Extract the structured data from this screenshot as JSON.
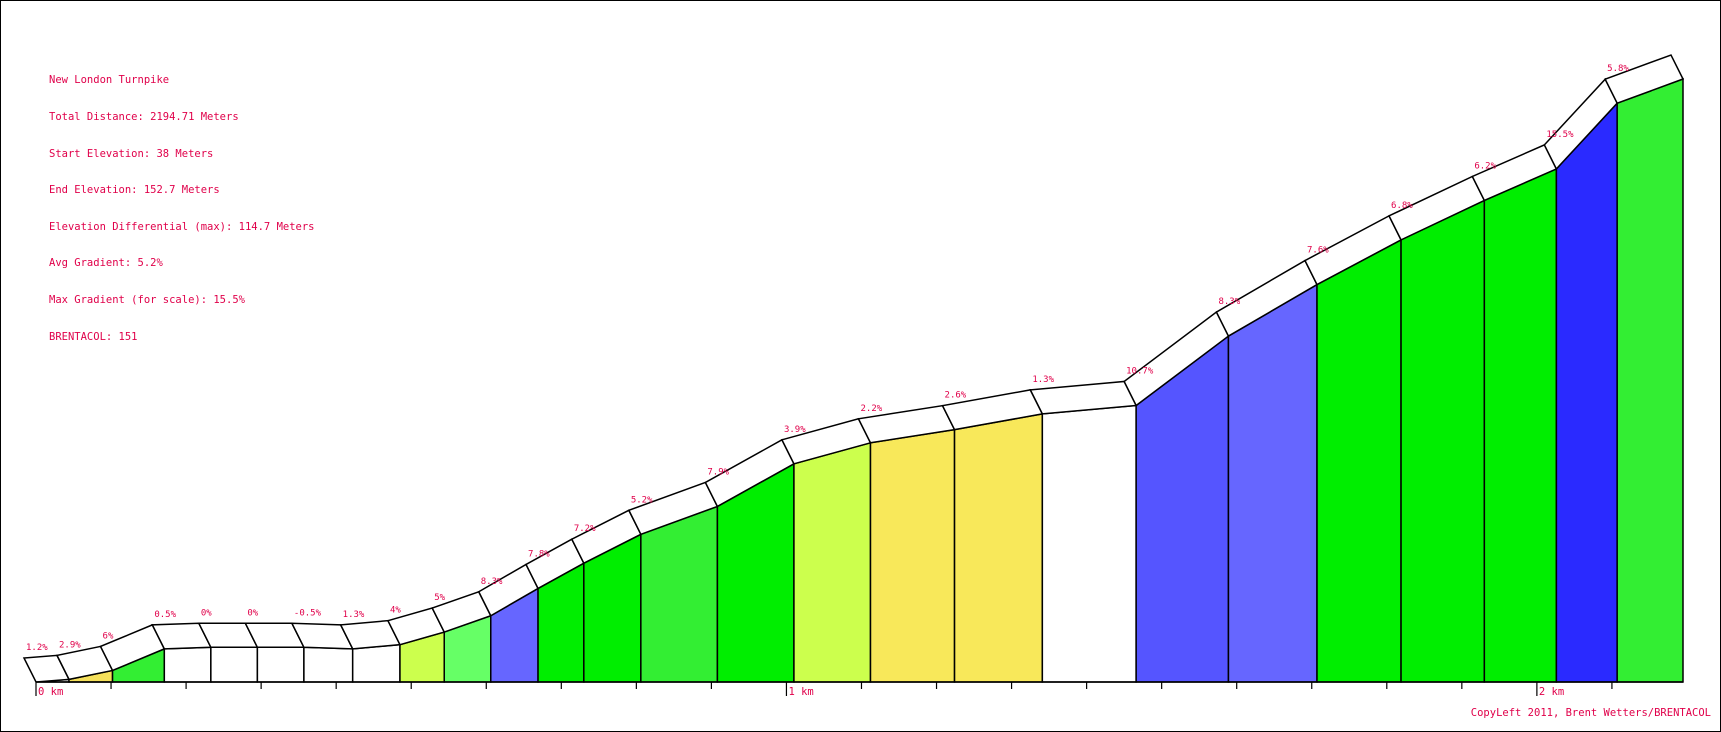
{
  "info": {
    "name": "New London Turnpike",
    "total_distance": "Total Distance: 2194.71 Meters",
    "start_elevation": "Start Elevation: 38 Meters",
    "end_elevation": "End Elevation: 152.7 Meters",
    "elevation_differential": "Elevation Differential (max): 114.7 Meters",
    "avg_gradient": "Avg Gradient: 5.2%",
    "max_gradient": "Max Gradient (for scale): 15.5%",
    "brentacol": "BRENTACOL: 151"
  },
  "copyright": "CopyLeft 2011, Brent Wetters/BRENTACOL",
  "colors": {
    "text": "#e0004a",
    "outline": "#000000"
  },
  "chart_data": {
    "type": "area",
    "xlabel": "",
    "ylabel": "",
    "x_tick_labels": [
      "0 km",
      "1 km",
      "2 km"
    ],
    "x_tick_km": [
      0,
      1,
      2
    ],
    "xlim_m": [
      0,
      2194.71
    ],
    "ylim_m": [
      38,
      152.7
    ],
    "segments": [
      {
        "end_m": 44,
        "end_elev": 38.5,
        "grade_label": "1.2%",
        "color": "#ffffff"
      },
      {
        "end_m": 102,
        "end_elev": 40.2,
        "grade_label": "2.9%",
        "color": "#f5e05a"
      },
      {
        "end_m": 171,
        "end_elev": 44.3,
        "grade_label": "6%",
        "color": "#33ee33"
      },
      {
        "end_m": 233,
        "end_elev": 44.6,
        "grade_label": "0.5%",
        "color": "#ffffff"
      },
      {
        "end_m": 295,
        "end_elev": 44.6,
        "grade_label": "0%",
        "color": "#ffffff"
      },
      {
        "end_m": 357,
        "end_elev": 44.6,
        "grade_label": "0%",
        "color": "#ffffff"
      },
      {
        "end_m": 422,
        "end_elev": 44.3,
        "grade_label": "-0.5%",
        "color": "#ffffff"
      },
      {
        "end_m": 485,
        "end_elev": 45.1,
        "grade_label": "1.3%",
        "color": "#ffffff"
      },
      {
        "end_m": 544,
        "end_elev": 47.5,
        "grade_label": "4%",
        "color": "#ccff4d"
      },
      {
        "end_m": 606,
        "end_elev": 50.6,
        "grade_label": "5%",
        "color": "#66ff66"
      },
      {
        "end_m": 669,
        "end_elev": 55.8,
        "grade_label": "8.3%",
        "color": "#6666ff"
      },
      {
        "end_m": 730,
        "end_elev": 60.6,
        "grade_label": "7.8%",
        "color": "#00ee00"
      },
      {
        "end_m": 806,
        "end_elev": 66.1,
        "grade_label": "7.2%",
        "color": "#00ee00"
      },
      {
        "end_m": 908,
        "end_elev": 71.4,
        "grade_label": "5.2%",
        "color": "#33ee33"
      },
      {
        "end_m": 1010,
        "end_elev": 79.5,
        "grade_label": "7.9%",
        "color": "#00ee00"
      },
      {
        "end_m": 1112,
        "end_elev": 83.5,
        "grade_label": "3.9%",
        "color": "#ccff4d"
      },
      {
        "end_m": 1224,
        "end_elev": 86,
        "grade_label": "2.2%",
        "color": "#f8e85a"
      },
      {
        "end_m": 1341,
        "end_elev": 89,
        "grade_label": "2.6%",
        "color": "#f8e85a"
      },
      {
        "end_m": 1466,
        "end_elev": 90.6,
        "grade_label": "1.3%",
        "color": "#ffffff"
      },
      {
        "end_m": 1589,
        "end_elev": 103.8,
        "grade_label": "10.7%",
        "color": "#5555ff"
      },
      {
        "end_m": 1707,
        "end_elev": 113.6,
        "grade_label": "8.3%",
        "color": "#6666ff"
      },
      {
        "end_m": 1819,
        "end_elev": 122.1,
        "grade_label": "7.6%",
        "color": "#00ee00"
      },
      {
        "end_m": 1930,
        "end_elev": 129.6,
        "grade_label": "6.8%",
        "color": "#00ee00"
      },
      {
        "end_m": 2026,
        "end_elev": 135.6,
        "grade_label": "6.2%",
        "color": "#00ee00"
      },
      {
        "end_m": 2107,
        "end_elev": 148.1,
        "grade_label": "15.5%",
        "color": "#2a2aff"
      },
      {
        "end_m": 2194.71,
        "end_elev": 152.7,
        "grade_label": "5.8%",
        "color": "#33ee33"
      }
    ]
  }
}
